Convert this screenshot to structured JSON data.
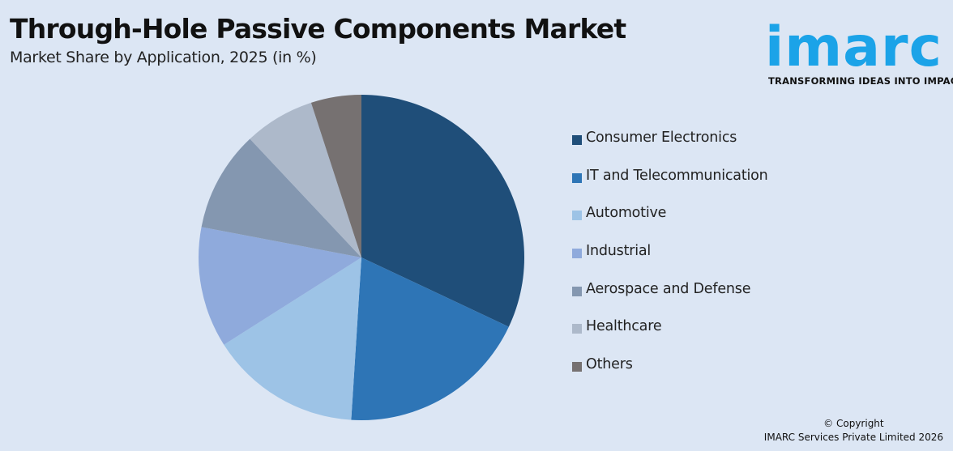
{
  "header": {
    "title": "Through-Hole Passive Components Market",
    "subtitle": "Market Share by Application, 2025 (in %)"
  },
  "logo": {
    "wordmark": "imarc",
    "tagline": "TRANSFORMING IDEAS INTO IMPACT",
    "color": "#1ba3e8"
  },
  "footer": {
    "copyright_line1": "© Copyright",
    "copyright_line2": "IMARC Services Private Limited 2026"
  },
  "chart_data": {
    "type": "pie",
    "title": "Through-Hole Passive Components Market",
    "subtitle": "Market Share by Application, 2025 (in %)",
    "legend_position": "right",
    "series": [
      {
        "name": "Consumer Electronics",
        "value": 32,
        "color": "#1f4e79"
      },
      {
        "name": "IT and Telecommunication",
        "value": 19,
        "color": "#2e75b6"
      },
      {
        "name": "Automotive",
        "value": 15,
        "color": "#9dc3e6"
      },
      {
        "name": "Industrial",
        "value": 12,
        "color": "#8faadc"
      },
      {
        "name": "Aerospace and Defense",
        "value": 10,
        "color": "#8497b0"
      },
      {
        "name": "Healthcare",
        "value": 7,
        "color": "#adb9ca"
      },
      {
        "name": "Others",
        "value": 5,
        "color": "#767171"
      }
    ]
  }
}
